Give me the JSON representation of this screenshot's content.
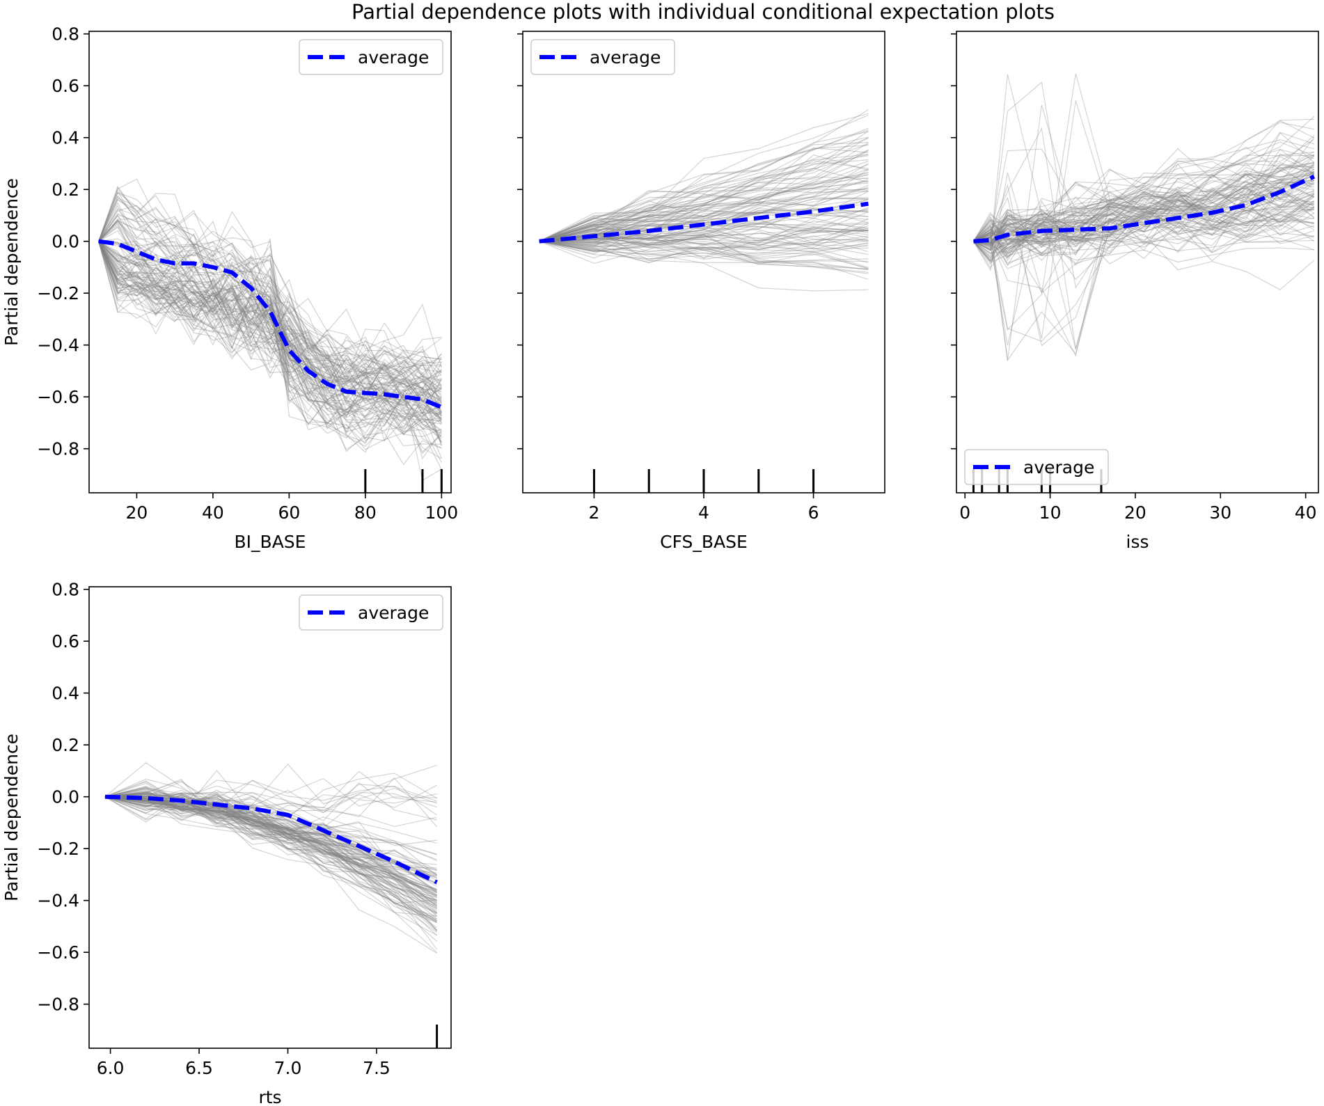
{
  "figure": {
    "title": "Partial dependence plots with individual conditional expectation plots"
  },
  "colors": {
    "average": "#0000ff",
    "ice": "#808080",
    "rug": "#000000",
    "axes": "#000000"
  },
  "chart_data": [
    {
      "type": "line",
      "id": "bi_base",
      "xlabel": "BI_BASE",
      "ylabel": "Partial dependence",
      "xlim": [
        7.5,
        102.5
      ],
      "ylim": [
        -0.97,
        0.81
      ],
      "xticks": [
        20,
        40,
        60,
        80,
        100
      ],
      "xtick_labels": [
        "20",
        "40",
        "60",
        "80",
        "100"
      ],
      "yticks": [
        -0.8,
        -0.6,
        -0.4,
        -0.2,
        0.0,
        0.2,
        0.4,
        0.6,
        0.8
      ],
      "ytick_labels": [
        "−0.8",
        "−0.6",
        "−0.4",
        "−0.2",
        "0.0",
        "0.2",
        "0.4",
        "0.6",
        "0.8"
      ],
      "show_yticklabels": true,
      "legend": {
        "label": "average",
        "loc": "upper right"
      },
      "average": {
        "x": [
          10,
          15,
          20,
          25,
          30,
          35,
          40,
          45,
          50,
          55,
          60,
          65,
          70,
          75,
          80,
          85,
          90,
          95,
          100
        ],
        "y": [
          0.0,
          -0.01,
          -0.04,
          -0.07,
          -0.085,
          -0.085,
          -0.1,
          -0.12,
          -0.18,
          -0.27,
          -0.42,
          -0.5,
          -0.55,
          -0.58,
          -0.585,
          -0.59,
          -0.6,
          -0.61,
          -0.64
        ]
      },
      "rug": [
        80,
        95,
        100
      ],
      "ice": {
        "count": 110,
        "seed": 7,
        "x0": 10,
        "x1": 100
      }
    },
    {
      "type": "line",
      "id": "cfs_base",
      "xlabel": "CFS_BASE",
      "ylabel": "",
      "xlim": [
        0.7,
        7.3
      ],
      "ylim": [
        -0.97,
        0.81
      ],
      "xticks": [
        2,
        4,
        6
      ],
      "xtick_labels": [
        "2",
        "4",
        "6"
      ],
      "yticks": [
        -0.8,
        -0.6,
        -0.4,
        -0.2,
        0.0,
        0.2,
        0.4,
        0.6,
        0.8
      ],
      "show_yticklabels": false,
      "legend": {
        "label": "average",
        "loc": "upper left"
      },
      "average": {
        "x": [
          1,
          2,
          3,
          4,
          5,
          6,
          7
        ],
        "y": [
          0.0,
          0.02,
          0.04,
          0.065,
          0.09,
          0.115,
          0.145
        ]
      },
      "rug": [
        2,
        3,
        4,
        5,
        6
      ],
      "ice": {
        "count": 110,
        "seed": 19,
        "x0": 1,
        "x1": 7
      }
    },
    {
      "type": "line",
      "id": "iss",
      "xlabel": "iss",
      "ylabel": "",
      "xlim": [
        -1,
        41.5
      ],
      "ylim": [
        -0.97,
        0.81
      ],
      "xticks": [
        0,
        10,
        20,
        30,
        40
      ],
      "xtick_labels": [
        "0",
        "10",
        "20",
        "30",
        "40"
      ],
      "yticks": [
        -0.8,
        -0.6,
        -0.4,
        -0.2,
        0.0,
        0.2,
        0.4,
        0.6,
        0.8
      ],
      "show_yticklabels": false,
      "legend": {
        "label": "average",
        "loc": "lower left"
      },
      "average": {
        "x": [
          1,
          3,
          5,
          9,
          13,
          17,
          21,
          25,
          29,
          33,
          37,
          41
        ],
        "y": [
          0.0,
          0.005,
          0.025,
          0.04,
          0.045,
          0.05,
          0.07,
          0.09,
          0.11,
          0.14,
          0.19,
          0.25
        ]
      },
      "rug": [
        1,
        2,
        4,
        5,
        9,
        10,
        16
      ],
      "ice": {
        "count": 110,
        "seed": 31,
        "x0": 1,
        "x1": 41
      }
    },
    {
      "type": "line",
      "id": "rts",
      "xlabel": "rts",
      "ylabel": "Partial dependence",
      "xlim": [
        5.88,
        7.92
      ],
      "ylim": [
        -0.97,
        0.81
      ],
      "xticks": [
        6.0,
        6.5,
        7.0,
        7.5
      ],
      "xtick_labels": [
        "6.0",
        "6.5",
        "7.0",
        "7.5"
      ],
      "yticks": [
        -0.8,
        -0.6,
        -0.4,
        -0.2,
        0.0,
        0.2,
        0.4,
        0.6,
        0.8
      ],
      "ytick_labels": [
        "−0.8",
        "−0.6",
        "−0.4",
        "−0.2",
        "0.0",
        "0.2",
        "0.4",
        "0.6",
        "0.8"
      ],
      "show_yticklabels": true,
      "legend": {
        "label": "average",
        "loc": "upper right"
      },
      "average": {
        "x": [
          5.97,
          6.2,
          6.4,
          6.6,
          6.8,
          7.0,
          7.2,
          7.4,
          7.6,
          7.84
        ],
        "y": [
          0.0,
          -0.005,
          -0.015,
          -0.03,
          -0.045,
          -0.07,
          -0.13,
          -0.19,
          -0.25,
          -0.33
        ]
      },
      "rug": [
        7.84
      ],
      "ice": {
        "count": 110,
        "seed": 53,
        "x0": 5.97,
        "x1": 7.84
      }
    }
  ]
}
